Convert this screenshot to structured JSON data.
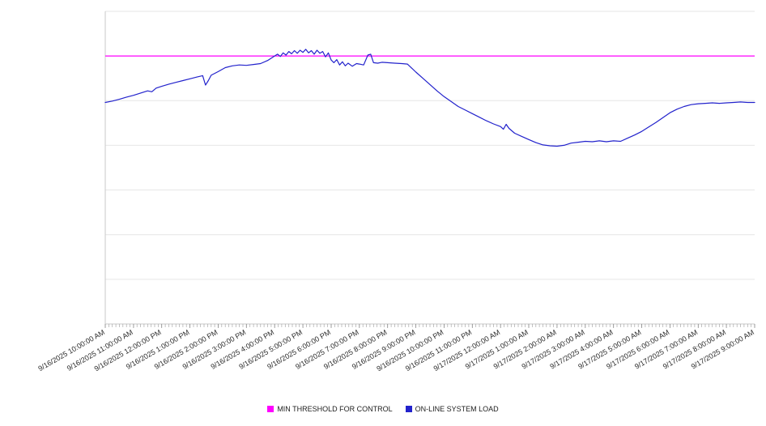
{
  "chart_data": {
    "type": "line",
    "title": "",
    "xlabel": "",
    "ylabel": "",
    "grid": true,
    "legend_position": "bottom-center",
    "note": "y-axis shows no numeric labels; series values are expressed in gridline units (1 unit per horizontal gridline, baseline 0 at the x-axis)",
    "x_categories": [
      "9/16/2025 10:00:00 AM",
      "9/16/2025 11:00:00 AM",
      "9/16/2025 12:00:00 PM",
      "9/16/2025 1:00:00 PM",
      "9/16/2025 2:00:00 PM",
      "9/16/2025 3:00:00 PM",
      "9/16/2025 4:00:00 PM",
      "9/16/2025 5:00:00 PM",
      "9/16/2025 6:00:00 PM",
      "9/16/2025 7:00:00 PM",
      "9/16/2025 8:00:00 PM",
      "9/16/2025 9:00:00 PM",
      "9/16/2025 10:00:00 PM",
      "9/16/2025 11:00:00 PM",
      "9/17/2025 12:00:00 AM",
      "9/17/2025 1:00:00 AM",
      "9/17/2025 2:00:00 AM",
      "9/17/2025 3:00:00 AM",
      "9/17/2025 4:00:00 AM",
      "9/17/2025 5:00:00 AM",
      "9/17/2025 6:00:00 AM",
      "9/17/2025 7:00:00 AM",
      "9/17/2025 8:00:00 AM",
      "9/17/2025 9:00:00 AM"
    ],
    "y_axis": {
      "min": 0,
      "max": 7,
      "gridlines": [
        1,
        2,
        3,
        4,
        5,
        6,
        7
      ],
      "labels_visible": false
    },
    "series": [
      {
        "name": "MIN THRESHOLD FOR CONTROL",
        "type": "threshold",
        "color": "#FF00FF",
        "value": 6.0
      },
      {
        "name": "ON-LINE SYSTEM LOAD",
        "type": "line",
        "color": "#2222CC",
        "points": [
          [
            0,
            4.96
          ],
          [
            0.25,
            4.99
          ],
          [
            0.5,
            5.03
          ],
          [
            0.75,
            5.08
          ],
          [
            1,
            5.12
          ],
          [
            1.25,
            5.17
          ],
          [
            1.5,
            5.22
          ],
          [
            1.65,
            5.2
          ],
          [
            1.8,
            5.28
          ],
          [
            2,
            5.32
          ],
          [
            2.25,
            5.37
          ],
          [
            2.5,
            5.41
          ],
          [
            2.75,
            5.45
          ],
          [
            3,
            5.49
          ],
          [
            3.25,
            5.53
          ],
          [
            3.45,
            5.56
          ],
          [
            3.55,
            5.35
          ],
          [
            3.65,
            5.45
          ],
          [
            3.75,
            5.57
          ],
          [
            4,
            5.65
          ],
          [
            4.25,
            5.74
          ],
          [
            4.5,
            5.78
          ],
          [
            4.75,
            5.8
          ],
          [
            5,
            5.79
          ],
          [
            5.25,
            5.81
          ],
          [
            5.5,
            5.83
          ],
          [
            5.75,
            5.9
          ],
          [
            6,
            6.0
          ],
          [
            6.1,
            6.04
          ],
          [
            6.2,
            5.99
          ],
          [
            6.3,
            6.07
          ],
          [
            6.4,
            6.02
          ],
          [
            6.5,
            6.1
          ],
          [
            6.6,
            6.05
          ],
          [
            6.7,
            6.12
          ],
          [
            6.8,
            6.06
          ],
          [
            6.9,
            6.13
          ],
          [
            7,
            6.08
          ],
          [
            7.1,
            6.15
          ],
          [
            7.2,
            6.07
          ],
          [
            7.3,
            6.12
          ],
          [
            7.4,
            6.04
          ],
          [
            7.5,
            6.13
          ],
          [
            7.6,
            6.06
          ],
          [
            7.7,
            6.1
          ],
          [
            7.8,
            5.98
          ],
          [
            7.9,
            6.07
          ],
          [
            8,
            5.91
          ],
          [
            8.1,
            5.85
          ],
          [
            8.2,
            5.92
          ],
          [
            8.3,
            5.8
          ],
          [
            8.4,
            5.87
          ],
          [
            8.5,
            5.78
          ],
          [
            8.6,
            5.84
          ],
          [
            8.75,
            5.77
          ],
          [
            8.9,
            5.83
          ],
          [
            9,
            5.82
          ],
          [
            9.15,
            5.8
          ],
          [
            9.3,
            6.02
          ],
          [
            9.4,
            6.04
          ],
          [
            9.5,
            5.85
          ],
          [
            9.65,
            5.84
          ],
          [
            9.8,
            5.86
          ],
          [
            10,
            5.85
          ],
          [
            10.25,
            5.84
          ],
          [
            10.5,
            5.83
          ],
          [
            10.7,
            5.82
          ],
          [
            11,
            5.64
          ],
          [
            11.25,
            5.5
          ],
          [
            11.5,
            5.36
          ],
          [
            11.75,
            5.22
          ],
          [
            12,
            5.09
          ],
          [
            12.25,
            4.98
          ],
          [
            12.5,
            4.87
          ],
          [
            12.75,
            4.79
          ],
          [
            13,
            4.71
          ],
          [
            13.25,
            4.63
          ],
          [
            13.5,
            4.55
          ],
          [
            13.75,
            4.48
          ],
          [
            14,
            4.42
          ],
          [
            14.1,
            4.36
          ],
          [
            14.2,
            4.47
          ],
          [
            14.3,
            4.38
          ],
          [
            14.5,
            4.27
          ],
          [
            14.75,
            4.2
          ],
          [
            15,
            4.13
          ],
          [
            15.25,
            4.06
          ],
          [
            15.5,
            4.01
          ],
          [
            15.75,
            3.99
          ],
          [
            16,
            3.98
          ],
          [
            16.25,
            4.0
          ],
          [
            16.5,
            4.05
          ],
          [
            16.75,
            4.07
          ],
          [
            17,
            4.09
          ],
          [
            17.25,
            4.08
          ],
          [
            17.5,
            4.1
          ],
          [
            17.75,
            4.08
          ],
          [
            18,
            4.1
          ],
          [
            18.25,
            4.09
          ],
          [
            18.5,
            4.16
          ],
          [
            18.75,
            4.23
          ],
          [
            19,
            4.31
          ],
          [
            19.25,
            4.41
          ],
          [
            19.5,
            4.51
          ],
          [
            19.75,
            4.62
          ],
          [
            20,
            4.73
          ],
          [
            20.25,
            4.81
          ],
          [
            20.5,
            4.87
          ],
          [
            20.75,
            4.91
          ],
          [
            21,
            4.93
          ],
          [
            21.25,
            4.94
          ],
          [
            21.5,
            4.95
          ],
          [
            21.75,
            4.94
          ],
          [
            22,
            4.95
          ],
          [
            22.25,
            4.96
          ],
          [
            22.5,
            4.97
          ],
          [
            22.75,
            4.96
          ],
          [
            23,
            4.96
          ]
        ]
      }
    ]
  }
}
